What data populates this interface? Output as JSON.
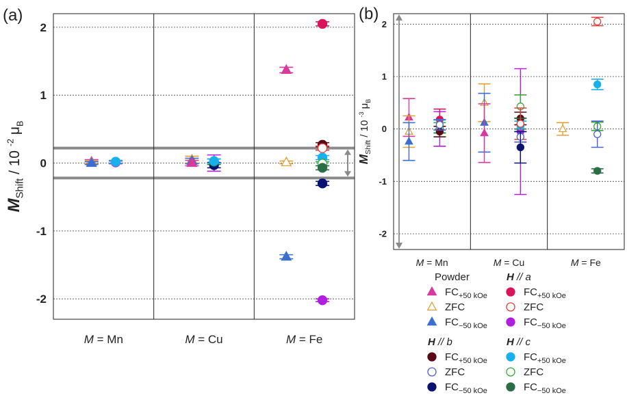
{
  "chart_data": [
    {
      "panel": "(a)",
      "type": "scatter",
      "ylabel_main": "M",
      "ylabel_sub": "Shift",
      "ylabel_unit": "/ 10",
      "ylabel_exp": "-2",
      "ylabel_mu": "μ",
      "ylabel_musub": "B",
      "ylim": [
        -2.3,
        2.2
      ],
      "yticks": [
        "2",
        "1",
        "0",
        "-1",
        "-2"
      ],
      "ytick_values": [
        2,
        1,
        0,
        -1,
        -2
      ],
      "grid": "dotted horizontal",
      "categories": [
        {
          "pre": "M",
          "post": " = Mn"
        },
        {
          "pre": "M",
          "post": " = Cu"
        },
        {
          "pre": "M",
          "post": " = Fe"
        }
      ],
      "band": [
        -0.22,
        0.22
      ],
      "points": [
        {
          "cat": 0,
          "dx": -0.12,
          "y": 0.02,
          "err": 0.03,
          "series": "powder_fc_p"
        },
        {
          "cat": 0,
          "dx": -0.12,
          "y": 0.01,
          "err": 0.02,
          "series": "powder_zfc"
        },
        {
          "cat": 0,
          "dx": -0.12,
          "y": 0.0,
          "err": 0.02,
          "series": "powder_fc_m"
        },
        {
          "cat": 0,
          "dx": 0.12,
          "y": 0.01,
          "err": 0.02,
          "series": "a_fc_m"
        },
        {
          "cat": 0,
          "dx": 0.12,
          "y": 0.02,
          "err": 0.02,
          "series": "c_fc_p"
        },
        {
          "cat": 1,
          "dx": -0.12,
          "y": 0.05,
          "err": 0.05,
          "series": "powder_zfc"
        },
        {
          "cat": 1,
          "dx": -0.12,
          "y": 0.03,
          "err": 0.04,
          "series": "powder_fc_m"
        },
        {
          "cat": 1,
          "dx": -0.12,
          "y": 0.0,
          "err": 0.04,
          "series": "powder_fc_p"
        },
        {
          "cat": 1,
          "dx": 0.1,
          "y": 0.0,
          "err": 0.12,
          "series": "a_fc_m"
        },
        {
          "cat": 1,
          "dx": 0.1,
          "y": -0.03,
          "err": 0.04,
          "series": "b_fc_m"
        },
        {
          "cat": 1,
          "dx": 0.1,
          "y": 0.02,
          "err": 0.04,
          "series": "c_fc_m"
        },
        {
          "cat": 1,
          "dx": 0.1,
          "y": 0.03,
          "err": 0.03,
          "series": "c_fc_p"
        },
        {
          "cat": 2,
          "dx": -0.18,
          "y": 1.37,
          "err": 0.04,
          "series": "powder_fc_p"
        },
        {
          "cat": 2,
          "dx": -0.18,
          "y": 0.01,
          "err": 0.02,
          "series": "powder_zfc"
        },
        {
          "cat": 2,
          "dx": -0.18,
          "y": -1.38,
          "err": 0.03,
          "series": "powder_fc_m"
        },
        {
          "cat": 2,
          "dx": 0.18,
          "y": 2.05,
          "err": 0.03,
          "series": "a_fc_p"
        },
        {
          "cat": 2,
          "dx": 0.18,
          "y": 0.27,
          "err": 0.03,
          "series": "b_fc_p"
        },
        {
          "cat": 2,
          "dx": 0.18,
          "y": 0.22,
          "err": 0.03,
          "series": "a_zfc"
        },
        {
          "cat": 2,
          "dx": 0.18,
          "y": 0.08,
          "err": 0.03,
          "series": "c_fc_p"
        },
        {
          "cat": 2,
          "dx": 0.18,
          "y": -0.01,
          "err": 0.03,
          "series": "c_zfc"
        },
        {
          "cat": 2,
          "dx": 0.18,
          "y": -0.07,
          "err": 0.03,
          "series": "c_fc_m"
        },
        {
          "cat": 2,
          "dx": 0.18,
          "y": -0.3,
          "err": 0.03,
          "series": "b_fc_m"
        },
        {
          "cat": 2,
          "dx": 0.18,
          "y": -2.02,
          "err": 0.02,
          "series": "a_fc_m"
        }
      ]
    },
    {
      "panel": "(b)",
      "type": "scatter",
      "ylabel_main": "M",
      "ylabel_sub": "Shift",
      "ylabel_unit": "/ 10",
      "ylabel_exp": "-3",
      "ylabel_mu": "μ",
      "ylabel_musub": "B",
      "ylim": [
        -2.3,
        2.2
      ],
      "yticks": [
        "2",
        "1",
        "0",
        "-1",
        "-2"
      ],
      "ytick_values": [
        2,
        1,
        0,
        -1,
        -2
      ],
      "grid": "dotted horizontal",
      "categories": [
        {
          "pre": "M",
          "post": " = Mn"
        },
        {
          "pre": "M",
          "post": " = Cu"
        },
        {
          "pre": "M",
          "post": " = Fe"
        }
      ],
      "points": [
        {
          "cat": 0,
          "dx": -0.3,
          "y": 0.22,
          "err": 0.36,
          "series": "powder_fc_p"
        },
        {
          "cat": 0,
          "dx": -0.3,
          "y": -0.05,
          "err": 0.3,
          "series": "powder_zfc"
        },
        {
          "cat": 0,
          "dx": -0.3,
          "y": -0.24,
          "err": 0.36,
          "series": "powder_fc_m"
        },
        {
          "cat": 0,
          "dx": 0.1,
          "y": 0.0,
          "err": 0.33,
          "series": "a_fc_m"
        },
        {
          "cat": 0,
          "dx": 0.1,
          "y": 0.18,
          "err": 0.2,
          "series": "a_fc_p"
        },
        {
          "cat": 0,
          "dx": 0.1,
          "y": 0.05,
          "err": 0.12,
          "series": "c_fc_p"
        },
        {
          "cat": 0,
          "dx": 0.1,
          "y": 0.02,
          "err": 0.1,
          "series": "c_zfc"
        },
        {
          "cat": 0,
          "dx": 0.1,
          "y": -0.05,
          "err": 0.1,
          "series": "b_fc_p"
        },
        {
          "cat": 0,
          "dx": 0.1,
          "y": 0.08,
          "err": 0.1,
          "series": "b_zfc"
        },
        {
          "cat": 1,
          "dx": -0.32,
          "y": 0.5,
          "err": 0.36,
          "series": "powder_zfc"
        },
        {
          "cat": 1,
          "dx": -0.32,
          "y": 0.12,
          "err": 0.56,
          "series": "powder_fc_m"
        },
        {
          "cat": 1,
          "dx": -0.32,
          "y": -0.08,
          "err": 0.56,
          "series": "powder_fc_p"
        },
        {
          "cat": 1,
          "dx": 0.15,
          "y": -0.05,
          "err": 1.2,
          "series": "a_fc_m"
        },
        {
          "cat": 1,
          "dx": 0.15,
          "y": 0.43,
          "err": 0.22,
          "series": "c_zfc"
        },
        {
          "cat": 1,
          "dx": 0.15,
          "y": 0.2,
          "err": 0.12,
          "series": "b_fc_p"
        },
        {
          "cat": 1,
          "dx": 0.15,
          "y": 0.1,
          "err": 0.1,
          "series": "c_fc_m"
        },
        {
          "cat": 1,
          "dx": 0.15,
          "y": 0.05,
          "err": 0.1,
          "series": "c_fc_p"
        },
        {
          "cat": 1,
          "dx": 0.15,
          "y": 0.1,
          "err": 0.3,
          "series": "a_zfc"
        },
        {
          "cat": 1,
          "dx": 0.15,
          "y": -0.15,
          "err": 0.1,
          "series": "b_zfc"
        },
        {
          "cat": 1,
          "dx": 0.15,
          "y": -0.35,
          "err": 0.3,
          "series": "b_fc_m"
        },
        {
          "cat": 2,
          "dx": -0.3,
          "y": 0.0,
          "err": 0.12,
          "series": "powder_zfc"
        },
        {
          "cat": 2,
          "dx": 0.15,
          "y": 2.05,
          "err": 0.08,
          "series": "a_zfc"
        },
        {
          "cat": 2,
          "dx": 0.15,
          "y": 0.85,
          "err": 0.1,
          "series": "c_fc_p"
        },
        {
          "cat": 2,
          "dx": 0.15,
          "y": 0.05,
          "err": 0.08,
          "series": "c_zfc"
        },
        {
          "cat": 2,
          "dx": 0.15,
          "y": -0.1,
          "err": 0.25,
          "series": "b_zfc"
        },
        {
          "cat": 2,
          "dx": 0.15,
          "y": -0.8,
          "err": 0.04,
          "series": "c_fc_m"
        }
      ]
    }
  ],
  "series_styles": {
    "powder_fc_p": {
      "shape": "triangle",
      "fill": true,
      "color": "#d63a9c"
    },
    "powder_zfc": {
      "shape": "triangle",
      "fill": false,
      "color": "#e0a030"
    },
    "powder_fc_m": {
      "shape": "triangle",
      "fill": true,
      "color": "#3a6fd0"
    },
    "a_fc_p": {
      "shape": "circle",
      "fill": true,
      "color": "#d8155a"
    },
    "a_zfc": {
      "shape": "circle",
      "fill": false,
      "color": "#e63a3a"
    },
    "a_fc_m": {
      "shape": "circle",
      "fill": true,
      "color": "#b01ee0"
    },
    "b_fc_p": {
      "shape": "circle",
      "fill": true,
      "color": "#5a0a16"
    },
    "b_zfc": {
      "shape": "circle",
      "fill": false,
      "color": "#4a62d0"
    },
    "b_fc_m": {
      "shape": "circle",
      "fill": true,
      "color": "#0a1270"
    },
    "c_fc_p": {
      "shape": "circle",
      "fill": true,
      "color": "#18b0e8"
    },
    "c_zfc": {
      "shape": "circle",
      "fill": false,
      "color": "#38a838"
    },
    "c_fc_m": {
      "shape": "circle",
      "fill": true,
      "color": "#2a6e46"
    }
  },
  "legend": {
    "groups": [
      {
        "head_pre": "",
        "head_bold": "",
        "head_italic": "",
        "head_text": "Powder",
        "items": [
          {
            "series": "powder_fc_p",
            "label": "FC",
            "sub": "+50 kOe"
          },
          {
            "series": "powder_zfc",
            "label": "ZFC",
            "sub": ""
          },
          {
            "series": "powder_fc_m",
            "label": "FC",
            "sub": "−50 kOe"
          }
        ]
      },
      {
        "head_bold": "H",
        "head_sym": " // ",
        "head_italic": "a",
        "head_text": "",
        "items": [
          {
            "series": "a_fc_p",
            "label": "FC",
            "sub": "+50 kOe"
          },
          {
            "series": "a_zfc",
            "label": "ZFC",
            "sub": ""
          },
          {
            "series": "a_fc_m",
            "label": "FC",
            "sub": "−50 kOe"
          }
        ]
      },
      {
        "head_bold": "H",
        "head_sym": " // ",
        "head_italic": "b",
        "head_text": "",
        "items": [
          {
            "series": "b_fc_p",
            "label": "FC",
            "sub": "+50 kOe"
          },
          {
            "series": "b_zfc",
            "label": "ZFC",
            "sub": ""
          },
          {
            "series": "b_fc_m",
            "label": "FC",
            "sub": "−50 kOe"
          }
        ]
      },
      {
        "head_bold": "H",
        "head_sym": " // ",
        "head_italic": "c",
        "head_text": "",
        "items": [
          {
            "series": "c_fc_p",
            "label": "FC",
            "sub": "+50 kOe"
          },
          {
            "series": "c_zfc",
            "label": "ZFC",
            "sub": ""
          },
          {
            "series": "c_fc_m",
            "label": "FC",
            "sub": "−50 kOe"
          }
        ]
      }
    ]
  }
}
